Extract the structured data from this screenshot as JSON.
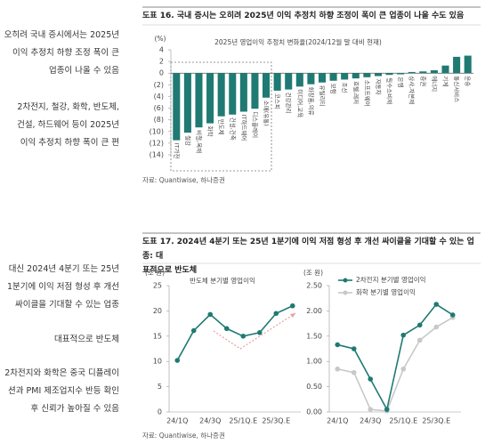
{
  "sidebar": [
    [
      "오히려 국내 증시에서는 2025년",
      "이익 추정치 하향 조정 폭이 큰",
      "업종이 나올 수 있음"
    ],
    [
      "2차전지, 철강, 화학, 반도체,",
      "건설, 하드웨어 등이 2025년",
      "이익 추정치 하향 폭이 큰 편"
    ],
    [
      "대신 2024년 4분기 또는 25년",
      "1분기에 이익 저점 형성 후 개선",
      "싸이클을 기대할 수 있는 업종"
    ],
    [
      "대표적으로 반도체"
    ],
    [
      "2차전지와 화학은 중국 디플레이",
      "션과 PMI 제조업지수 반등 확인",
      "후 신뢰가 높아질 수 있음"
    ]
  ],
  "figures": [
    {
      "title": "도표 16. 국내 증시는 오히려 2025년 이익 추정치 하향 조정이 폭이 큰 업종이 나올 수도 있음",
      "source": "자료: Quantiwise, 하나증권"
    },
    {
      "title": [
        "도표 17. 2024년 4분기 또는 25년 1분기에 이익 저점 형성 후 개선 싸이클을 기대할 수 있는 업종: 대",
        "표적으로 반도체"
      ],
      "source": "자료: Quantiwise, 하나증권"
    }
  ],
  "chart_data": [
    {
      "type": "bar",
      "title": "2025년 영업이익 추정치 변화율(2024/12월 말 대비 현재)",
      "unit": "(%)",
      "color": "#1f7a73",
      "categories": [
        "IT가전",
        "철강",
        "비철,목재",
        "화학",
        "반도체",
        "건설,건축",
        "IT하드웨어",
        "디스플레이",
        "소매(유통)",
        "코스피",
        "건강관리",
        "미디어,교육",
        "화장품,의류",
        "유틸리티",
        "보험",
        "조선",
        "호텔,레저",
        "소프트웨어",
        "자동차",
        "필수소비재",
        "은행",
        "상사,자본재",
        "증권",
        "에너지",
        "기계",
        "통신서비스",
        "운송"
      ],
      "values": [
        -11.5,
        -10.2,
        -9.3,
        -8.6,
        -7.4,
        -7.1,
        -6.6,
        -6.1,
        -4.2,
        -3.0,
        -2.8,
        -2.3,
        -1.9,
        -1.6,
        -1.3,
        -1.1,
        -0.9,
        -0.7,
        -0.5,
        -0.3,
        -0.2,
        0.2,
        0.3,
        0.5,
        1.3,
        2.8,
        3.0
      ],
      "ylim": [
        -14,
        4
      ],
      "yticks": [
        4,
        2,
        0,
        {
          "value": -2,
          "label": "(2)"
        },
        {
          "value": -4,
          "label": "(4)"
        },
        {
          "value": -6,
          "label": "(6)"
        },
        {
          "value": -8,
          "label": "(8)"
        },
        {
          "value": -10,
          "label": "(10)"
        },
        {
          "value": -12,
          "label": "(12)"
        },
        {
          "value": -14,
          "label": "(14)"
        }
      ],
      "grid": false
    },
    {
      "type": "line",
      "title": "반도체 분기별 영업이익",
      "unit": "(조 원)",
      "color": "#1f7a73",
      "categories": [
        "24/1Q",
        null,
        "24/3Q",
        null,
        "25/1Q.E",
        null,
        "25/3Q.E",
        null
      ],
      "values": [
        10.2,
        16.1,
        19.3,
        16.5,
        15.0,
        15.7,
        19.5,
        21.0
      ],
      "ylim": [
        0,
        25
      ],
      "yticks": [
        0,
        5,
        10,
        15,
        20,
        25
      ],
      "grid": false
    },
    {
      "type": "line",
      "unit": "(조 원)",
      "legend": "top-left",
      "categories": [
        "24/1Q",
        null,
        "24/3Q",
        null,
        "25/1Q.E",
        null,
        "25/3Q.E",
        null
      ],
      "series": [
        {
          "name": "2차전지 분기별 영업이익",
          "color": "#1f7a73",
          "values": [
            1.33,
            1.25,
            0.65,
            0.05,
            1.52,
            1.72,
            2.13,
            1.92
          ]
        },
        {
          "name": "화학 분기별 영업이익",
          "color": "#c8c8c8",
          "values": [
            0.85,
            0.78,
            0.05,
            0.02,
            0.85,
            1.42,
            1.68,
            1.87
          ]
        }
      ],
      "ylim": [
        0,
        2.5
      ],
      "yticks": [
        {
          "value": 0,
          "label": "0.00"
        },
        {
          "value": 0.5,
          "label": "0.50"
        },
        {
          "value": 1,
          "label": "1.00"
        },
        {
          "value": 1.5,
          "label": "1.50"
        },
        {
          "value": 2,
          "label": "2.00"
        },
        {
          "value": 2.5,
          "label": "2.50"
        }
      ],
      "grid": false
    }
  ]
}
